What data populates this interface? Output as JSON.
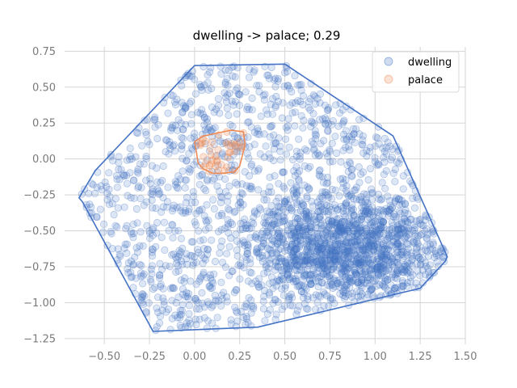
{
  "chart_data": {
    "type": "scatter",
    "title": "dwelling -> palace; 0.29",
    "xlabel": "",
    "ylabel": "",
    "xlim": [
      -0.72,
      1.5
    ],
    "ylim": [
      -1.29,
      0.78
    ],
    "grid": true,
    "legend": "top-right",
    "x_ticks": [
      -0.5,
      -0.25,
      0.0,
      0.25,
      0.5,
      0.75,
      1.0,
      1.25,
      1.5
    ],
    "x_tick_labels": [
      "−0.50",
      "−0.25",
      "0.00",
      "0.25",
      "0.50",
      "0.75",
      "1.00",
      "1.25",
      "1.50"
    ],
    "y_ticks": [
      0.75,
      0.5,
      0.25,
      0.0,
      -0.25,
      -0.5,
      -0.75,
      -1.0,
      -1.25
    ],
    "y_tick_labels": [
      "0.75",
      "0.50",
      "0.25",
      "0.00",
      "−0.25",
      "−0.50",
      "−0.75",
      "−1.00",
      "−1.25"
    ],
    "series": [
      {
        "name": "dwelling",
        "color": "#4472c4",
        "count": 2500,
        "hull": [
          [
            0.0,
            0.65
          ],
          [
            0.5,
            0.66
          ],
          [
            1.1,
            0.16
          ],
          [
            1.4,
            -0.68
          ],
          [
            1.39,
            -0.71
          ],
          [
            1.25,
            -0.9
          ],
          [
            0.35,
            -1.17
          ],
          [
            -0.23,
            -1.2
          ],
          [
            -0.62,
            -0.3
          ],
          [
            -0.64,
            -0.27
          ],
          [
            -0.55,
            -0.08
          ]
        ]
      },
      {
        "name": "palace",
        "color": "#ee8a55",
        "count": 40,
        "hull": [
          [
            0.0,
            0.12
          ],
          [
            0.05,
            0.16
          ],
          [
            0.2,
            0.2
          ],
          [
            0.27,
            0.19
          ],
          [
            0.28,
            0.1
          ],
          [
            0.25,
            -0.05
          ],
          [
            0.22,
            -0.09
          ],
          [
            0.15,
            -0.1
          ],
          [
            0.1,
            -0.1
          ],
          [
            0.05,
            -0.07
          ],
          [
            0.02,
            -0.03
          ],
          [
            0.01,
            0.05
          ]
        ]
      }
    ]
  }
}
